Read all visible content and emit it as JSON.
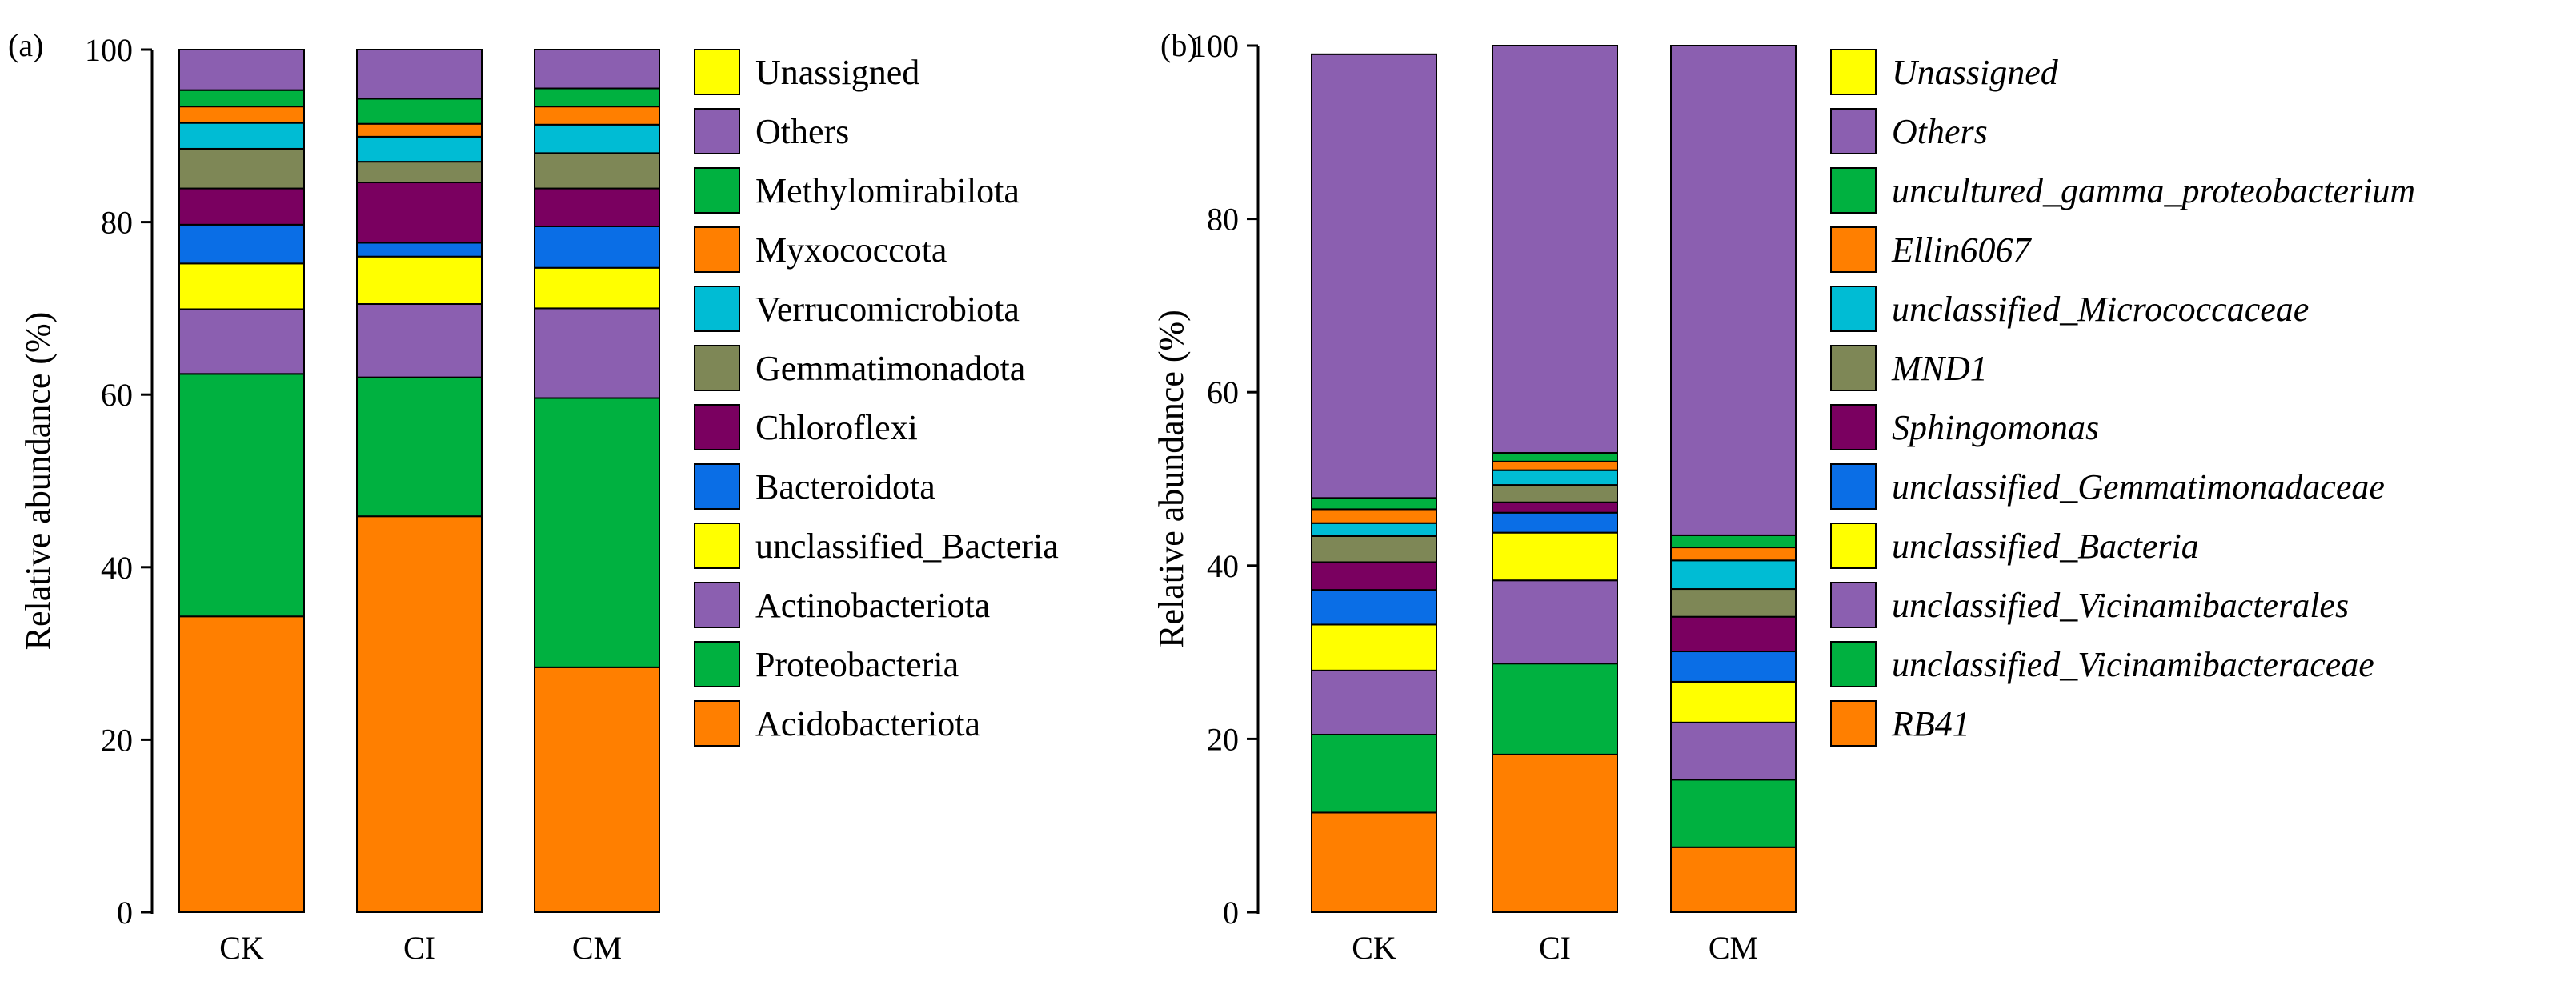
{
  "chart_data": [
    {
      "type": "bar",
      "stacked": true,
      "panel_label": "(a)",
      "categories": [
        "CK",
        "CI",
        "CM"
      ],
      "ylabel": "Relative abundance (%)",
      "ylim": [
        0,
        100
      ],
      "yticks": [
        "0",
        "20",
        "40",
        "60",
        "80",
        "100"
      ],
      "legend_italic": false,
      "legend_position": "right",
      "series": [
        {
          "name": "Acidobacteriota",
          "color": "#FF7F00",
          "values": [
            34.3,
            45.9,
            28.4
          ]
        },
        {
          "name": "Proteobacteria",
          "color": "#00B140",
          "values": [
            28.1,
            16.1,
            31.2
          ]
        },
        {
          "name": "Actinobacteriota",
          "color": "#8B5FB0",
          "values": [
            7.5,
            8.5,
            10.4
          ]
        },
        {
          "name": "unclassified_Bacteria",
          "color": "#FFFF00",
          "values": [
            5.3,
            5.5,
            4.7
          ]
        },
        {
          "name": "Bacteroidota",
          "color": "#0A6EE6",
          "values": [
            4.5,
            1.6,
            4.8
          ]
        },
        {
          "name": "Chloroflexi",
          "color": "#7A0060",
          "values": [
            4.2,
            7.0,
            4.4
          ]
        },
        {
          "name": "Gemmatimonadota",
          "color": "#7E8756",
          "values": [
            4.6,
            2.4,
            4.1
          ]
        },
        {
          "name": "Verrucomicrobiota",
          "color": "#00BCD4",
          "values": [
            3.0,
            2.9,
            3.3
          ]
        },
        {
          "name": "Myxococcota",
          "color": "#FF7F00",
          "values": [
            1.9,
            1.5,
            2.1
          ]
        },
        {
          "name": "Methylomirabilota",
          "color": "#00B140",
          "values": [
            1.9,
            2.9,
            2.1
          ]
        },
        {
          "name": "Others",
          "color": "#8B5FB0",
          "values": [
            4.7,
            5.7,
            4.5
          ]
        },
        {
          "name": "Unassigned",
          "color": "#FFFF00",
          "values": [
            0.0,
            0.0,
            0.0
          ]
        }
      ]
    },
    {
      "type": "bar",
      "stacked": true,
      "panel_label": "(b)",
      "categories": [
        "CK",
        "CI",
        "CM"
      ],
      "ylabel": "Relative abundance (%)",
      "ylim": [
        0,
        100
      ],
      "yticks": [
        "0",
        "20",
        "40",
        "60",
        "80",
        "100"
      ],
      "legend_italic": true,
      "legend_position": "right",
      "series": [
        {
          "name": "RB41",
          "color": "#FF7F00",
          "values": [
            11.5,
            18.2,
            7.5
          ]
        },
        {
          "name": "unclassified_Vicinamibacteraceae",
          "color": "#00B140",
          "values": [
            9.0,
            10.5,
            7.8
          ]
        },
        {
          "name": "unclassified_Vicinamibacterales",
          "color": "#8B5FB0",
          "values": [
            7.4,
            9.6,
            6.6
          ]
        },
        {
          "name": "unclassified_Bacteria",
          "color": "#FFFF00",
          "values": [
            5.3,
            5.5,
            4.7
          ]
        },
        {
          "name": "unclassified_Gemmatimonadaceae",
          "color": "#0A6EE6",
          "values": [
            4.0,
            2.3,
            3.5
          ]
        },
        {
          "name": "Sphingomonas",
          "color": "#7A0060",
          "values": [
            3.2,
            1.2,
            4.0
          ]
        },
        {
          "name": "MND1",
          "color": "#7E8756",
          "values": [
            3.0,
            2.0,
            3.2
          ]
        },
        {
          "name": "unclassified_Micrococcaceae",
          "color": "#00BCD4",
          "values": [
            1.5,
            1.7,
            3.3
          ]
        },
        {
          "name": "Ellin6067",
          "color": "#FF7F00",
          "values": [
            1.6,
            1.0,
            1.5
          ]
        },
        {
          "name": "uncultured_gamma_proteobacterium",
          "color": "#00B140",
          "values": [
            1.3,
            1.0,
            1.4
          ]
        },
        {
          "name": "Others",
          "color": "#8B5FB0",
          "values": [
            51.2,
            47.0,
            56.5
          ]
        },
        {
          "name": "Unassigned",
          "color": "#FFFF00",
          "values": [
            0.0,
            0.0,
            0.0
          ]
        }
      ]
    }
  ]
}
